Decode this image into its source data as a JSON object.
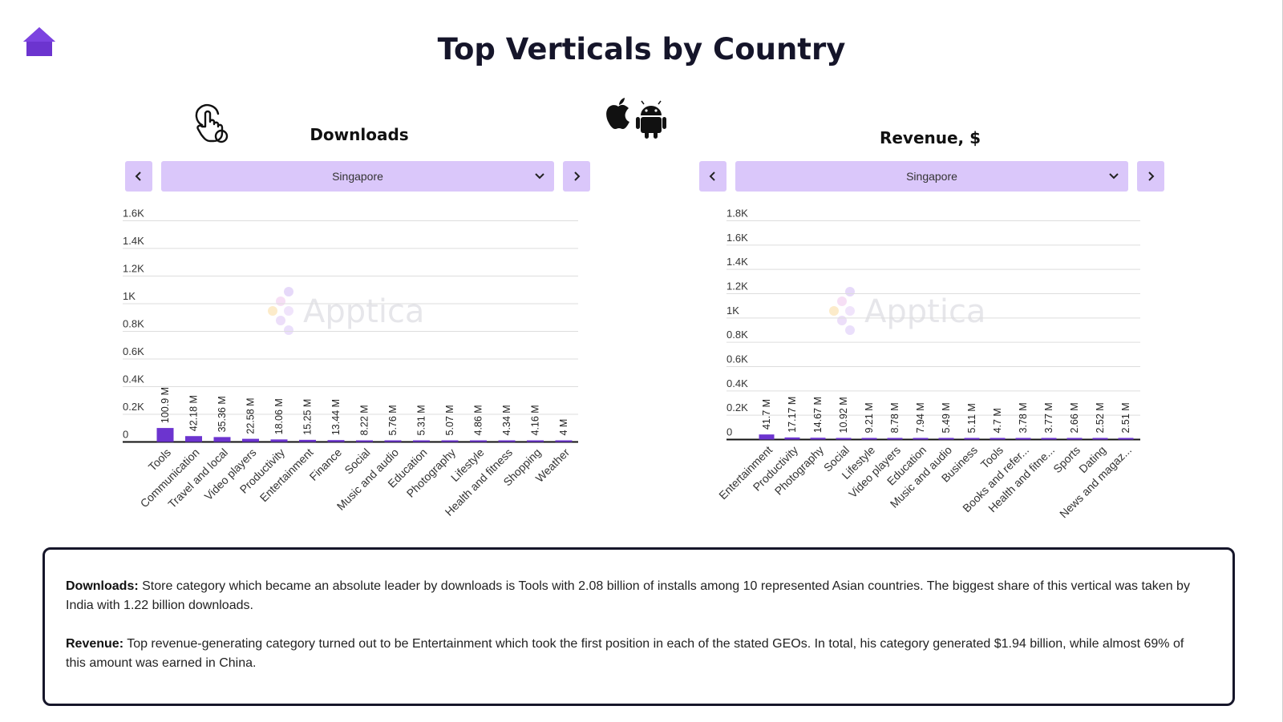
{
  "page": {
    "title": "Top Verticals by Country",
    "icons": {
      "home": "home-icon",
      "pointer": "hand-pointer-icon",
      "apple": "apple-icon",
      "android": "android-icon"
    },
    "colors": {
      "accent": "#6c34cf",
      "control_bg": "#dac7fa",
      "title": "#15152a"
    }
  },
  "downloads_panel": {
    "title": "Downloads",
    "country": "Singapore",
    "prev_icon": "chevron-left-icon",
    "next_icon": "chevron-right-icon",
    "watermark": "Apptica"
  },
  "revenue_panel": {
    "title": "Revenue, $",
    "country": "Singapore",
    "prev_icon": "chevron-left-icon",
    "next_icon": "chevron-right-icon",
    "watermark": "Apptica"
  },
  "chart_data": [
    {
      "type": "bar",
      "title": "Downloads",
      "categories": [
        "Tools",
        "Communication",
        "Travel and local",
        "Video players",
        "Productivity",
        "Entertainment",
        "Finance",
        "Social",
        "Music and audio",
        "Education",
        "Photography",
        "Lifestyle",
        "Health and fitness",
        "Shopping",
        "Weather"
      ],
      "values": [
        100.9,
        42.18,
        35.36,
        22.58,
        18.06,
        15.25,
        13.44,
        8.22,
        5.76,
        5.31,
        5.07,
        4.86,
        4.34,
        4.16,
        4
      ],
      "data_labels": [
        "100.9 M",
        "42.18 M",
        "35.36 M",
        "22.58 M",
        "18.06 M",
        "15.25 M",
        "13.44 M",
        "8.22 M",
        "5.76 M",
        "5.31 M",
        "5.07 M",
        "4.86 M",
        "4.34 M",
        "4.16 M",
        "4 M"
      ],
      "yticks": [
        0,
        200,
        400,
        600,
        800,
        1000,
        1200,
        1400,
        1600
      ],
      "ytick_labels": [
        "0",
        "0.2K",
        "0.4K",
        "0.6K",
        "0.8K",
        "1K",
        "1.2K",
        "1.4K",
        "1.6K"
      ],
      "ylim": [
        0,
        1600
      ],
      "grid": true,
      "color": "#6c34cf"
    },
    {
      "type": "bar",
      "title": "Revenue, $",
      "categories": [
        "Entertainment",
        "Productivity",
        "Photography",
        "Social",
        "Lifestyle",
        "Video players",
        "Education",
        "Music and audio",
        "Business",
        "Tools",
        "Books and refer...",
        "Health and fitne...",
        "Sports",
        "Dating",
        "News and magaz..."
      ],
      "values": [
        41.7,
        17.17,
        14.67,
        10.92,
        9.21,
        8.78,
        7.94,
        5.49,
        5.11,
        4.7,
        3.78,
        3.77,
        2.66,
        2.52,
        2.51
      ],
      "data_labels": [
        "41.7 M",
        "17.17 M",
        "14.67 M",
        "10.92 M",
        "9.21 M",
        "8.78 M",
        "7.94 M",
        "5.49 M",
        "5.11 M",
        "4.7 M",
        "3.78 M",
        "3.77 M",
        "2.66 M",
        "2.52 M",
        "2.51 M"
      ],
      "yticks": [
        0,
        200,
        400,
        600,
        800,
        1000,
        1200,
        1400,
        1600,
        1800
      ],
      "ytick_labels": [
        "0",
        "0.2K",
        "0.4K",
        "0.6K",
        "0.8K",
        "1K",
        "1.2K",
        "1.4K",
        "1.6K",
        "1.8K"
      ],
      "ylim": [
        0,
        1800
      ],
      "grid": true,
      "color": "#6c34cf"
    }
  ],
  "info": {
    "downloads_label": "Downloads:",
    "downloads_text": "Store category which became an absolute leader by downloads is Tools with 2.08 billion of installs among 10 represented Asian countries. The biggest share of this vertical was taken by India with 1.22 billion downloads.",
    "revenue_label": "Revenue:",
    "revenue_text": "Top revenue-generating category turned out to be Entertainment which took the first position in each of the stated GEOs. In total, his category generated $1.94 billion, while almost 69% of this amount was earned in China."
  }
}
